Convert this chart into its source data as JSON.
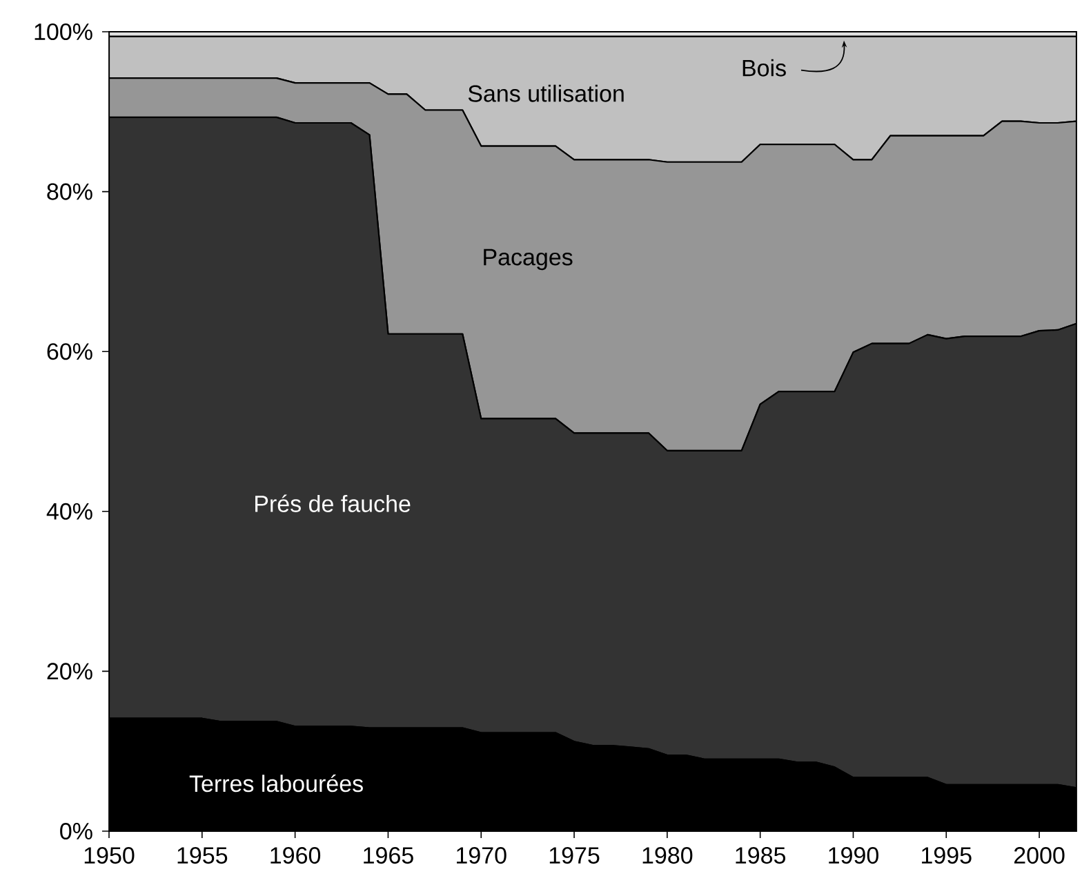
{
  "chart_data": {
    "type": "area",
    "stacked": true,
    "x": [
      1950,
      1951,
      1952,
      1953,
      1954,
      1955,
      1956,
      1957,
      1958,
      1959,
      1960,
      1961,
      1962,
      1963,
      1964,
      1965,
      1966,
      1967,
      1968,
      1969,
      1970,
      1971,
      1972,
      1973,
      1974,
      1975,
      1976,
      1977,
      1978,
      1979,
      1980,
      1981,
      1982,
      1983,
      1984,
      1985,
      1986,
      1987,
      1988,
      1989,
      1990,
      1991,
      1992,
      1993,
      1994,
      1995,
      1996,
      1997,
      1998,
      1999,
      2000,
      2001,
      2002
    ],
    "series": [
      {
        "name": "Terres labourées",
        "color": "#000000",
        "values": [
          14.1,
          14.1,
          14.1,
          14.1,
          14.1,
          14.1,
          13.7,
          13.7,
          13.7,
          13.7,
          13.1,
          13.1,
          13.1,
          13.1,
          12.9,
          12.9,
          12.9,
          12.9,
          12.9,
          12.9,
          12.3,
          12.3,
          12.3,
          12.3,
          12.3,
          11.2,
          10.7,
          10.7,
          10.5,
          10.3,
          9.5,
          9.5,
          9.0,
          9.0,
          9.0,
          9.0,
          9.0,
          8.6,
          8.6,
          8.0,
          6.7,
          6.7,
          6.7,
          6.7,
          6.7,
          5.8,
          5.8,
          5.8,
          5.8,
          5.8,
          5.8,
          5.8,
          5.4
        ]
      },
      {
        "name": "Prés de fauche",
        "color": "#333333",
        "values": [
          75.2,
          75.2,
          75.2,
          75.2,
          75.2,
          75.2,
          75.6,
          75.6,
          75.6,
          75.6,
          75.5,
          75.5,
          75.5,
          75.5,
          74.2,
          49.3,
          49.3,
          49.3,
          49.3,
          49.3,
          39.3,
          39.3,
          39.3,
          39.3,
          39.3,
          38.6,
          39.1,
          39.1,
          39.3,
          39.5,
          38.1,
          38.1,
          38.6,
          38.6,
          38.6,
          44.4,
          46.0,
          46.4,
          46.4,
          47.0,
          53.2,
          54.3,
          54.3,
          54.3,
          55.4,
          55.8,
          56.1,
          56.1,
          56.1,
          56.1,
          56.8,
          56.9,
          58.1
        ]
      },
      {
        "name": "Pacages",
        "color": "#969696",
        "values": [
          4.9,
          4.9,
          4.9,
          4.9,
          4.9,
          4.9,
          4.9,
          4.9,
          4.9,
          4.9,
          5.0,
          5.0,
          5.0,
          5.0,
          6.5,
          30.0,
          30.0,
          28.0,
          28.0,
          28.0,
          34.1,
          34.1,
          34.1,
          34.1,
          34.1,
          34.2,
          34.2,
          34.2,
          34.2,
          34.2,
          36.1,
          36.1,
          36.1,
          36.1,
          36.1,
          32.5,
          30.9,
          30.9,
          30.9,
          30.9,
          24.1,
          23.0,
          26.0,
          26.0,
          24.9,
          25.4,
          25.1,
          25.1,
          26.9,
          26.9,
          26.0,
          25.9,
          25.3
        ]
      },
      {
        "name": "Sans utilisation",
        "color": "#c0c0c0",
        "values": [
          5.2,
          5.2,
          5.2,
          5.2,
          5.2,
          5.2,
          5.2,
          5.2,
          5.2,
          5.2,
          5.8,
          5.8,
          5.8,
          5.8,
          5.8,
          7.2,
          7.2,
          9.2,
          9.2,
          9.2,
          13.7,
          13.7,
          13.7,
          13.7,
          13.7,
          15.4,
          15.4,
          15.4,
          15.4,
          15.4,
          15.7,
          15.7,
          15.7,
          15.7,
          15.7,
          13.5,
          13.5,
          13.5,
          13.5,
          13.5,
          15.4,
          15.4,
          12.4,
          12.4,
          12.4,
          12.4,
          12.4,
          12.4,
          10.6,
          10.6,
          10.8,
          10.8,
          10.6
        ]
      },
      {
        "name": "Bois",
        "color": "#e0e0e0",
        "values": [
          0.6,
          0.6,
          0.6,
          0.6,
          0.6,
          0.6,
          0.6,
          0.6,
          0.6,
          0.6,
          0.6,
          0.6,
          0.6,
          0.6,
          0.6,
          0.6,
          0.6,
          0.6,
          0.6,
          0.6,
          0.6,
          0.6,
          0.6,
          0.6,
          0.6,
          0.6,
          0.6,
          0.6,
          0.6,
          0.6,
          0.6,
          0.6,
          0.6,
          0.6,
          0.6,
          0.6,
          0.6,
          0.6,
          0.6,
          0.6,
          0.6,
          0.6,
          0.6,
          0.6,
          0.6,
          0.6,
          0.6,
          0.6,
          0.6,
          0.6,
          0.6,
          0.6,
          0.6
        ]
      }
    ],
    "xlim": [
      1950,
      2002
    ],
    "xticks": [
      1950,
      1955,
      1960,
      1965,
      1970,
      1975,
      1980,
      1985,
      1990,
      1995,
      2000
    ],
    "ylim": [
      0,
      100
    ],
    "yticks": [
      {
        "value": 0,
        "label": "0%"
      },
      {
        "value": 20,
        "label": "20%"
      },
      {
        "value": 40,
        "label": "40%"
      },
      {
        "value": 60,
        "label": "60%"
      },
      {
        "value": 80,
        "label": "80%"
      },
      {
        "value": 100,
        "label": "100%"
      }
    ]
  }
}
